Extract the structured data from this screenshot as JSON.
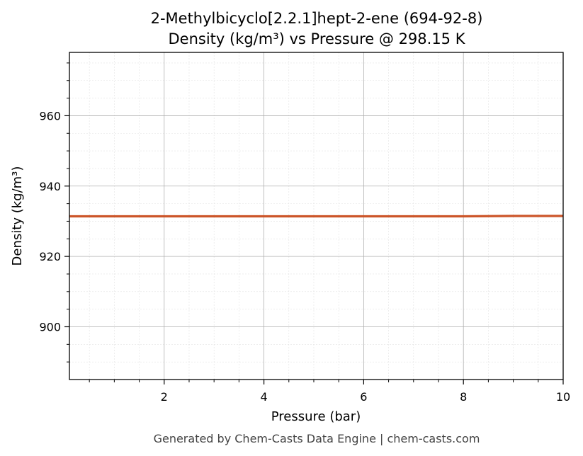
{
  "chart_data": {
    "type": "line",
    "title_line1": "2-Methylbicyclo[2.2.1]hept-2-ene (694-92-8)",
    "title_line2": "Density (kg/m³) vs Pressure @ 298.15 K",
    "xlabel": "Pressure (bar)",
    "ylabel": "Density (kg/m³)",
    "xlim": [
      0.1,
      10
    ],
    "ylim": [
      885,
      978
    ],
    "x_ticks": [
      2,
      4,
      6,
      8,
      10
    ],
    "y_ticks": [
      900,
      920,
      940,
      960
    ],
    "x_tick_labels": [
      "2",
      "4",
      "6",
      "8",
      "10"
    ],
    "y_tick_labels": [
      "900",
      "920",
      "940",
      "960"
    ],
    "grid": true,
    "series": [
      {
        "color": "#cc5529",
        "x": [
          0.1,
          1,
          2,
          3,
          4,
          5,
          6,
          7,
          8,
          9,
          10
        ],
        "y": [
          931.4,
          931.4,
          931.4,
          931.4,
          931.4,
          931.4,
          931.4,
          931.4,
          931.4,
          931.5,
          931.5
        ]
      }
    ]
  },
  "footer": "Generated by Chem-Casts Data Engine | chem-casts.com"
}
